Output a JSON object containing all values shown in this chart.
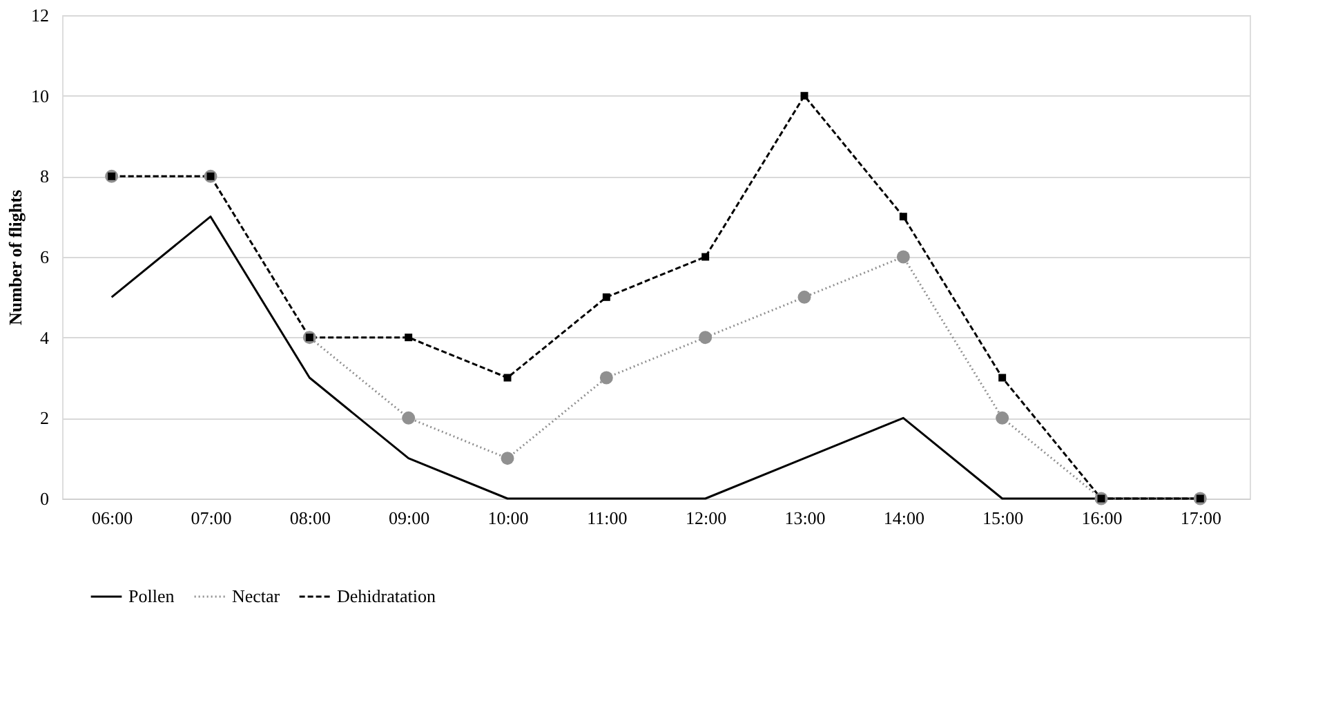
{
  "chart_data": {
    "type": "line",
    "ylabel": "Number of flights",
    "categories": [
      "06:00",
      "07:00",
      "08:00",
      "09:00",
      "10:00",
      "11:00",
      "12:00",
      "13:00",
      "14:00",
      "15:00",
      "16:00",
      "17:00"
    ],
    "series": [
      {
        "name": "Pollen",
        "color": "#000000",
        "marker": "none",
        "line_style": "solid",
        "values": [
          5,
          7,
          3,
          1,
          0,
          0,
          0,
          1,
          2,
          0,
          0,
          0
        ]
      },
      {
        "name": "Nectar",
        "color": "#909090",
        "marker": "circle",
        "line_style": "dotted",
        "values": [
          8,
          8,
          4,
          2,
          1,
          3,
          4,
          5,
          6,
          2,
          0,
          0
        ]
      },
      {
        "name": "Dehidratation",
        "color": "#000000",
        "marker": "square",
        "line_style": "dashed",
        "values": [
          8,
          8,
          4,
          4,
          3,
          5,
          6,
          10,
          7,
          3,
          0,
          0
        ]
      }
    ],
    "ylim": [
      0,
      12
    ],
    "yticks": [
      0,
      2,
      4,
      6,
      8,
      10,
      12
    ],
    "grid": "y",
    "legend": "bottom"
  }
}
